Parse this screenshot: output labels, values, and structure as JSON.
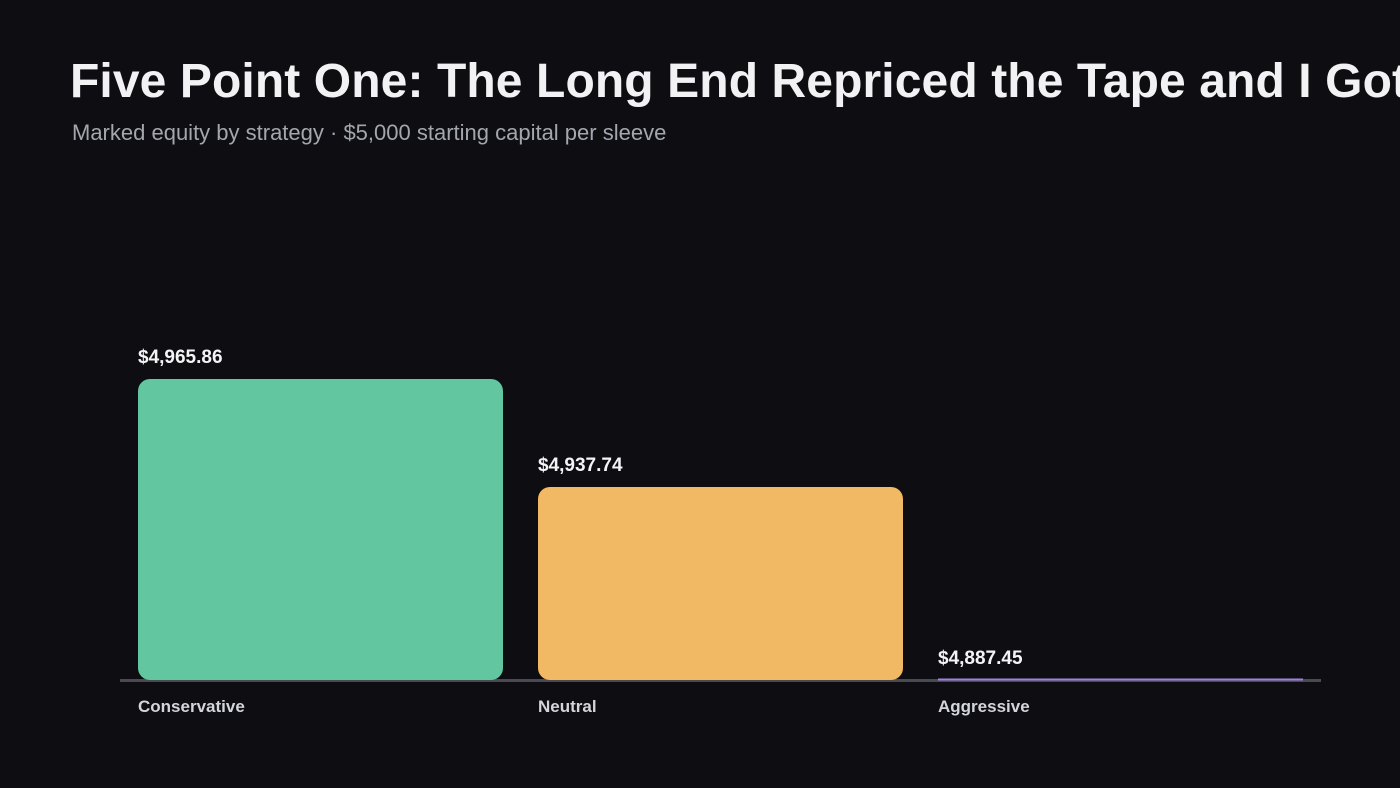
{
  "header": {
    "title": "Five Point One: The Long End Repriced the Tape and I Got",
    "subtitle": "Marked equity by strategy · $5,000 starting capital per sleeve"
  },
  "chart_data": {
    "type": "bar",
    "categories": [
      "Conservative",
      "Neutral",
      "Aggressive"
    ],
    "values": [
      4965.86,
      4937.74,
      4887.45
    ],
    "value_labels": [
      "$4,965.86",
      "$4,937.74",
      "$4,887.45"
    ],
    "colors": [
      "#62c6a0",
      "#f2b965",
      "#9d82e0"
    ],
    "baseline_color": "#4a4b52",
    "ylim": [
      4887.45,
      5000
    ],
    "grid": false,
    "legend": "none"
  }
}
